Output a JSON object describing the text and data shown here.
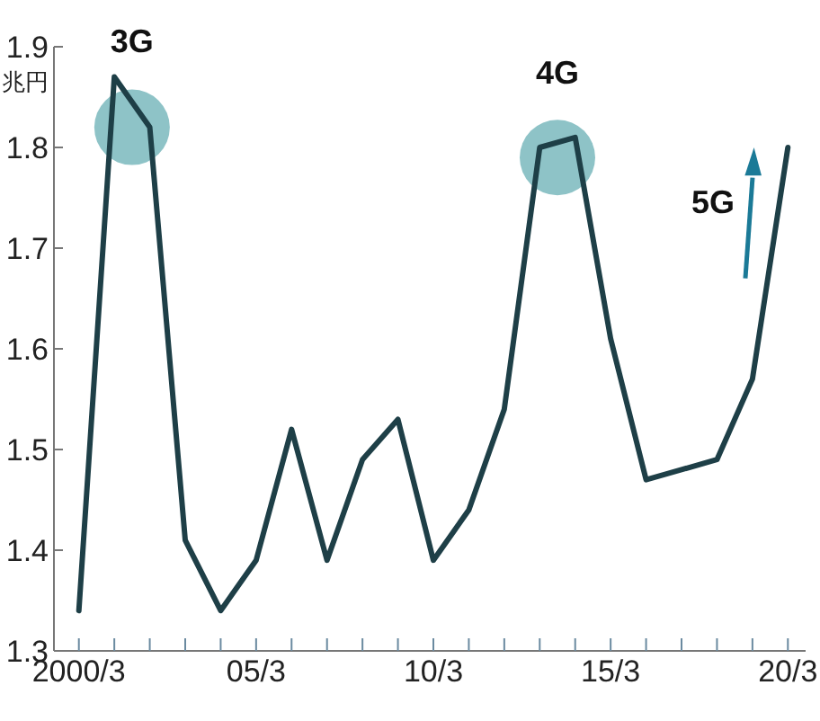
{
  "chart_data": {
    "type": "line",
    "ylabel": "兆円",
    "categories": [
      "2000/3",
      null,
      null,
      null,
      null,
      "05/3",
      null,
      null,
      null,
      null,
      "10/3",
      null,
      null,
      null,
      null,
      "15/3",
      null,
      null,
      null,
      null,
      "20/3"
    ],
    "series": [
      {
        "color": "#1e3f47",
        "values": [
          1.34,
          1.87,
          1.82,
          1.41,
          1.34,
          1.39,
          1.52,
          1.39,
          1.49,
          1.53,
          1.39,
          1.44,
          1.54,
          1.8,
          1.81,
          1.61,
          1.47,
          1.48,
          1.49,
          1.57,
          1.8
        ]
      }
    ],
    "ylim": [
      1.3,
      1.9
    ],
    "yticks": [
      1.3,
      1.4,
      1.5,
      1.6,
      1.7,
      1.8,
      1.9
    ],
    "annotations": [
      "3G",
      "4G",
      "5G"
    ],
    "marker": "none",
    "line_style": "solid"
  }
}
